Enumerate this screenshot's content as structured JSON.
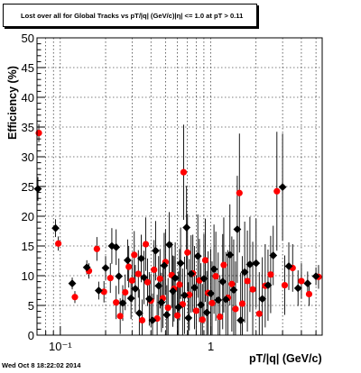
{
  "timestamp": "Wed Oct  8 18:22:02 2014",
  "chart_data": {
    "type": "scatter",
    "title": "Lost over all for Global Tracks vs pT/|q| (GeV/c)|η| <= 1.0 at pT > 0.11",
    "xlabel": "pT/|q| (GeV/c)",
    "ylabel": "Efficiency (%)",
    "x_scale": "log",
    "xlim": [
      0.07,
      5.5
    ],
    "ylim": [
      0,
      50
    ],
    "y_ticks": [
      0,
      5,
      10,
      15,
      20,
      25,
      30,
      35,
      40,
      45,
      50
    ],
    "x_tick_labels": [
      "10⁻¹",
      "1"
    ],
    "grid": true,
    "series": [
      {
        "marker": "circle",
        "color": "#ff0000",
        "points": [
          [
            0.072,
            34.0,
            1.5
          ],
          [
            0.097,
            15.4,
            1.2
          ],
          [
            0.125,
            6.4,
            1.0
          ],
          [
            0.155,
            10.8,
            1.3
          ],
          [
            0.175,
            14.5,
            2.0
          ],
          [
            0.195,
            7.3,
            1.8
          ],
          [
            0.215,
            9.6,
            2.5
          ],
          [
            0.235,
            5.5,
            2.8
          ],
          [
            0.25,
            3.2,
            3.0
          ],
          [
            0.27,
            7.2,
            3.0
          ],
          [
            0.285,
            11.5,
            3.5
          ],
          [
            0.3,
            9.2,
            3.5
          ],
          [
            0.31,
            13.5,
            4.0
          ],
          [
            0.33,
            10.3,
            4.0
          ],
          [
            0.35,
            2.5,
            3.5
          ],
          [
            0.37,
            15.3,
            4.5
          ],
          [
            0.38,
            8.9,
            4.0
          ],
          [
            0.4,
            5.8,
            4.5
          ],
          [
            0.42,
            11.0,
            5.0
          ],
          [
            0.44,
            2.8,
            4.0
          ],
          [
            0.46,
            9.5,
            5.0
          ],
          [
            0.48,
            6.2,
            5.0
          ],
          [
            0.5,
            12.3,
            5.5
          ],
          [
            0.52,
            4.6,
            5.0
          ],
          [
            0.55,
            10.1,
            5.5
          ],
          [
            0.57,
            7.8,
            5.5
          ],
          [
            0.6,
            3.3,
            5.0
          ],
          [
            0.62,
            8.5,
            6.0
          ],
          [
            0.65,
            5.2,
            6.0
          ],
          [
            0.66,
            27.4,
            8.0
          ],
          [
            0.7,
            13.9,
            6.5
          ],
          [
            0.72,
            6.8,
            6.0
          ],
          [
            0.76,
            10.4,
            6.5
          ],
          [
            0.8,
            4.1,
            6.0
          ],
          [
            0.84,
            9.2,
            7.0
          ],
          [
            0.88,
            2.6,
            6.0
          ],
          [
            0.92,
            12.6,
            7.0
          ],
          [
            0.96,
            7.1,
            7.0
          ],
          [
            1.02,
            5.4,
            7.0
          ],
          [
            1.08,
            9.9,
            7.5
          ],
          [
            1.15,
            3.1,
            7.0
          ],
          [
            1.22,
            11.8,
            8.0
          ],
          [
            1.3,
            6.3,
            8.0
          ],
          [
            1.38,
            8.6,
            8.0
          ],
          [
            1.46,
            4.4,
            8.0
          ],
          [
            1.55,
            23.9,
            10.0
          ],
          [
            1.62,
            5.3,
            8.0
          ],
          [
            1.75,
            9.1,
            8.5
          ],
          [
            1.9,
            7.7,
            8.0
          ],
          [
            2.1,
            3.6,
            7.0
          ],
          [
            2.3,
            8.3,
            7.0
          ],
          [
            2.5,
            10.2,
            6.5
          ],
          [
            2.75,
            24.2,
            10.0
          ],
          [
            3.1,
            8.4,
            5.0
          ],
          [
            3.5,
            11.3,
            4.0
          ],
          [
            4.0,
            9.1,
            3.0
          ],
          [
            4.5,
            6.9,
            2.0
          ],
          [
            5.2,
            9.8,
            2.0
          ]
        ]
      },
      {
        "marker": "diamond",
        "color": "#000000",
        "points": [
          [
            0.071,
            24.6,
            2.0
          ],
          [
            0.093,
            18.0,
            1.5
          ],
          [
            0.12,
            8.7,
            1.0
          ],
          [
            0.15,
            11.4,
            1.2
          ],
          [
            0.18,
            7.5,
            1.5
          ],
          [
            0.2,
            11.3,
            2.0
          ],
          [
            0.22,
            15.0,
            3.0
          ],
          [
            0.235,
            14.8,
            3.0
          ],
          [
            0.245,
            9.9,
            3.0
          ],
          [
            0.26,
            5.4,
            3.0
          ],
          [
            0.28,
            12.6,
            3.5
          ],
          [
            0.295,
            6.2,
            3.5
          ],
          [
            0.315,
            7.8,
            4.0
          ],
          [
            0.335,
            3.7,
            4.0
          ],
          [
            0.345,
            12.9,
            4.0
          ],
          [
            0.36,
            9.7,
            4.5
          ],
          [
            0.39,
            6.1,
            4.5
          ],
          [
            0.41,
            2.5,
            4.5
          ],
          [
            0.43,
            14.2,
            5.0
          ],
          [
            0.45,
            8.3,
            5.0
          ],
          [
            0.47,
            5.5,
            5.0
          ],
          [
            0.49,
            11.7,
            5.5
          ],
          [
            0.51,
            3.4,
            5.0
          ],
          [
            0.53,
            15.2,
            5.5
          ],
          [
            0.56,
            7.4,
            6.0
          ],
          [
            0.58,
            9.6,
            6.0
          ],
          [
            0.61,
            4.7,
            6.0
          ],
          [
            0.63,
            12.1,
            6.0
          ],
          [
            0.67,
            6.7,
            6.5
          ],
          [
            0.69,
            18.1,
            7.0
          ],
          [
            0.71,
            2.9,
            6.0
          ],
          [
            0.74,
            10.3,
            6.5
          ],
          [
            0.78,
            8.0,
            7.0
          ],
          [
            0.82,
            13.3,
            7.0
          ],
          [
            0.86,
            5.1,
            7.0
          ],
          [
            0.9,
            9.5,
            7.5
          ],
          [
            0.94,
            3.8,
            7.0
          ],
          [
            1.0,
            7.0,
            7.5
          ],
          [
            1.05,
            11.1,
            7.5
          ],
          [
            1.12,
            5.9,
            8.0
          ],
          [
            1.2,
            9.0,
            8.0
          ],
          [
            1.26,
            6.0,
            8.0
          ],
          [
            1.34,
            13.5,
            8.5
          ],
          [
            1.42,
            7.6,
            8.5
          ],
          [
            1.5,
            17.8,
            9.0
          ],
          [
            1.58,
            2.5,
            8.0
          ],
          [
            1.68,
            10.6,
            8.5
          ],
          [
            1.82,
            11.9,
            8.0
          ],
          [
            2.0,
            12.1,
            7.5
          ],
          [
            2.2,
            6.1,
            7.0
          ],
          [
            2.4,
            8.4,
            6.0
          ],
          [
            2.6,
            13.4,
            5.0
          ],
          [
            3.0,
            24.9,
            9.0
          ],
          [
            3.3,
            11.6,
            4.0
          ],
          [
            3.8,
            7.9,
            3.0
          ],
          [
            4.4,
            8.7,
            2.0
          ],
          [
            5.0,
            9.9,
            1.5
          ]
        ]
      }
    ]
  }
}
